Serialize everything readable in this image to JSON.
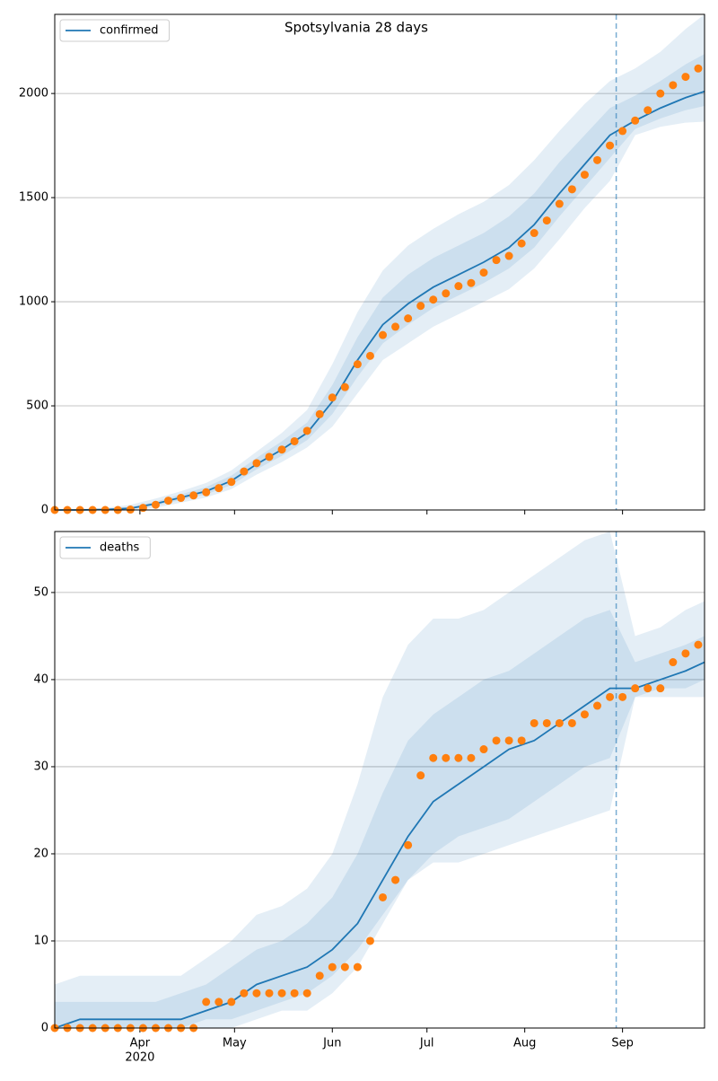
{
  "chart_data": [
    {
      "type": "forecast",
      "title": "Spotsylvania 28 days",
      "xlim": [
        0,
        206
      ],
      "xticks": [
        27,
        57,
        88,
        118,
        149,
        180
      ],
      "ylim": [
        0,
        2380
      ],
      "yticks": [
        0,
        500,
        1000,
        1500,
        2000
      ],
      "grid": true,
      "legend": "upper left",
      "forecast_x": 178,
      "x": [
        0,
        8,
        16,
        24,
        32,
        40,
        48,
        56,
        64,
        72,
        80,
        88,
        96,
        104,
        112,
        120,
        128,
        136,
        144,
        152,
        160,
        168,
        176,
        184,
        192,
        200,
        206
      ],
      "series": [
        {
          "name": "confirmed",
          "color": "#1f77b4",
          "values": [
            0,
            0,
            2,
            8,
            30,
            60,
            90,
            140,
            220,
            290,
            370,
            520,
            720,
            890,
            990,
            1070,
            1130,
            1190,
            1260,
            1370,
            1520,
            1660,
            1800,
            1870,
            1930,
            1980,
            2010
          ]
        }
      ],
      "bands": [
        {
          "color": "#1f77b4",
          "lower": [
            0,
            0,
            0,
            0,
            10,
            35,
            60,
            100,
            170,
            230,
            300,
            400,
            560,
            720,
            800,
            880,
            940,
            1000,
            1060,
            1160,
            1300,
            1450,
            1580,
            1800,
            1840,
            1860,
            1865
          ],
          "upper": [
            5,
            5,
            10,
            25,
            55,
            90,
            130,
            190,
            280,
            370,
            480,
            700,
            950,
            1150,
            1270,
            1350,
            1420,
            1480,
            1560,
            1680,
            1820,
            1950,
            2060,
            2120,
            2200,
            2310,
            2380
          ]
        },
        {
          "color": "#1f77b4",
          "lower": [
            0,
            0,
            1,
            4,
            20,
            48,
            75,
            120,
            195,
            260,
            335,
            460,
            640,
            800,
            890,
            970,
            1030,
            1090,
            1160,
            1260,
            1410,
            1550,
            1690,
            1830,
            1880,
            1920,
            1940
          ],
          "upper": [
            0,
            2,
            5,
            15,
            40,
            75,
            110,
            165,
            250,
            330,
            420,
            600,
            830,
            1020,
            1130,
            1210,
            1270,
            1330,
            1410,
            1520,
            1670,
            1800,
            1930,
            1990,
            2060,
            2140,
            2190
          ]
        }
      ],
      "observed": {
        "color": "#ff7f0e",
        "x": [
          0,
          4,
          8,
          12,
          16,
          20,
          24,
          28,
          32,
          36,
          40,
          44,
          48,
          52,
          56,
          60,
          64,
          68,
          72,
          76,
          80,
          84,
          88,
          92,
          96,
          100,
          104,
          108,
          112,
          116,
          120,
          124,
          128,
          132,
          136,
          140,
          144,
          148,
          152,
          156,
          160,
          164,
          168,
          172,
          176,
          180,
          184,
          188,
          192,
          196,
          200,
          204
        ],
        "values": [
          0,
          0,
          0,
          0,
          0,
          0,
          2,
          10,
          25,
          45,
          58,
          70,
          85,
          105,
          135,
          185,
          225,
          255,
          290,
          330,
          380,
          460,
          540,
          590,
          700,
          740,
          840,
          880,
          920,
          980,
          1010,
          1040,
          1075,
          1090,
          1140,
          1200,
          1220,
          1280,
          1330,
          1390,
          1470,
          1540,
          1610,
          1680,
          1750,
          1820,
          1870,
          1920,
          2000,
          2040,
          2080,
          2120
        ]
      }
    },
    {
      "type": "forecast",
      "xlim": [
        0,
        206
      ],
      "xticks": [
        {
          "value": 27,
          "label": "Apr"
        },
        {
          "value": 57,
          "label": "May"
        },
        {
          "value": 88,
          "label": "Jun"
        },
        {
          "value": 118,
          "label": "Jul"
        },
        {
          "value": 149,
          "label": "Aug"
        },
        {
          "value": 180,
          "label": "Sep"
        }
      ],
      "year": "2020",
      "ylim": [
        0,
        57
      ],
      "yticks": [
        0,
        10,
        20,
        30,
        40,
        50
      ],
      "grid": true,
      "legend": "upper left",
      "forecast_x": 178,
      "x": [
        0,
        8,
        16,
        24,
        32,
        40,
        48,
        56,
        64,
        72,
        80,
        88,
        96,
        104,
        112,
        120,
        128,
        136,
        144,
        152,
        160,
        168,
        176,
        184,
        192,
        200,
        206
      ],
      "series": [
        {
          "name": "deaths",
          "color": "#1f77b4",
          "values": [
            0,
            1,
            1,
            1,
            1,
            1,
            2,
            3,
            5,
            6,
            7,
            9,
            12,
            17,
            22,
            26,
            28,
            30,
            32,
            33,
            35,
            37,
            39,
            39,
            40,
            41,
            42
          ]
        }
      ],
      "bands": [
        {
          "color": "#1f77b4",
          "lower": [
            0,
            0,
            0,
            0,
            0,
            0,
            0,
            0,
            1,
            2,
            2,
            4,
            7,
            12,
            17,
            19,
            19,
            20,
            21,
            22,
            23,
            24,
            25,
            38,
            38,
            38,
            38
          ],
          "upper": [
            5,
            6,
            6,
            6,
            6,
            6,
            8,
            10,
            13,
            14,
            16,
            20,
            28,
            38,
            44,
            47,
            47,
            48,
            50,
            52,
            54,
            56,
            57,
            45,
            46,
            48,
            49
          ]
        },
        {
          "color": "#1f77b4",
          "lower": [
            0,
            0,
            0,
            0,
            0,
            0,
            1,
            1,
            2,
            3,
            4,
            6,
            9,
            13,
            17,
            20,
            22,
            23,
            24,
            26,
            28,
            30,
            31,
            38,
            39,
            39,
            40
          ],
          "upper": [
            3,
            3,
            3,
            3,
            3,
            4,
            5,
            7,
            9,
            10,
            12,
            15,
            20,
            27,
            33,
            36,
            38,
            40,
            41,
            43,
            45,
            47,
            48,
            42,
            43,
            44,
            45
          ]
        }
      ],
      "observed": {
        "color": "#ff7f0e",
        "x": [
          0,
          4,
          8,
          12,
          16,
          20,
          24,
          28,
          32,
          36,
          40,
          44,
          48,
          52,
          56,
          60,
          64,
          68,
          72,
          76,
          80,
          84,
          88,
          92,
          96,
          100,
          104,
          108,
          112,
          116,
          120,
          124,
          128,
          132,
          136,
          140,
          144,
          148,
          152,
          156,
          160,
          164,
          168,
          172,
          176,
          180,
          184,
          188,
          192,
          196,
          200,
          204
        ],
        "values": [
          0,
          0,
          0,
          0,
          0,
          0,
          0,
          0,
          0,
          0,
          0,
          0,
          3,
          3,
          3,
          4,
          4,
          4,
          4,
          4,
          4,
          6,
          7,
          7,
          7,
          10,
          15,
          17,
          21,
          29,
          31,
          31,
          31,
          31,
          32,
          33,
          33,
          33,
          35,
          35,
          35,
          35,
          36,
          37,
          38,
          38,
          39,
          39,
          39,
          42,
          43,
          44
        ]
      }
    }
  ]
}
